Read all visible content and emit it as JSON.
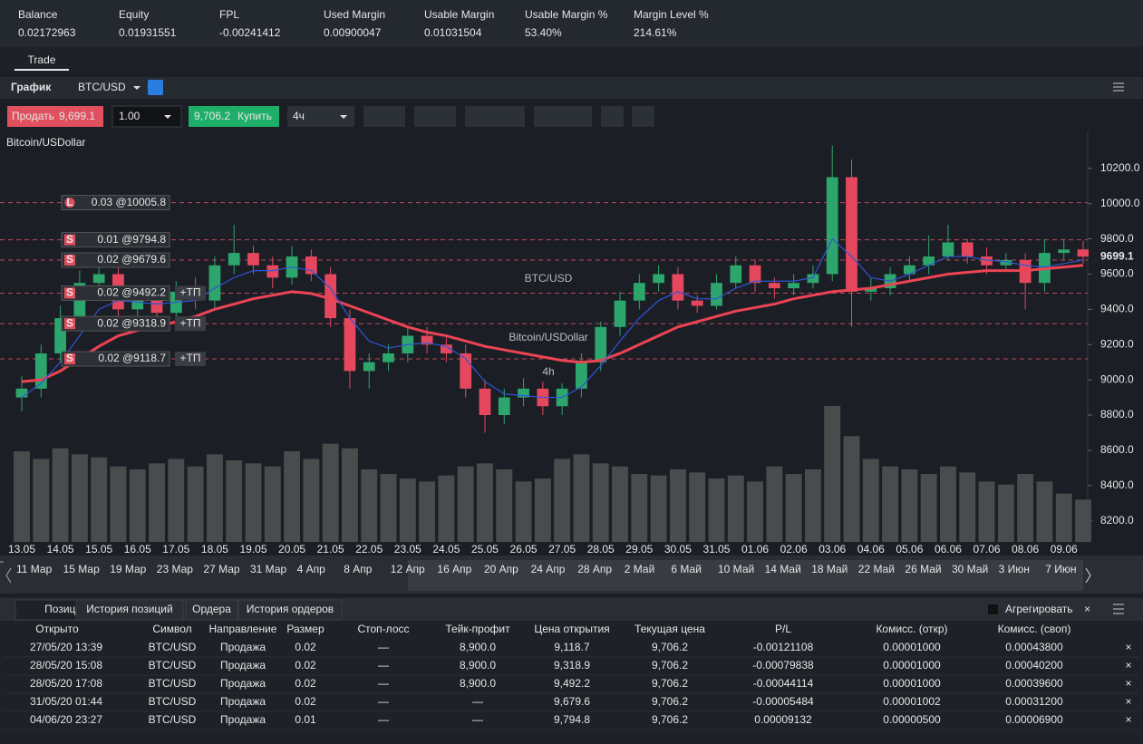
{
  "account": [
    {
      "label": "Balance",
      "value": "0.02172963"
    },
    {
      "label": "Equity",
      "value": "0.01931551"
    },
    {
      "label": "FPL",
      "value": "-0.00241412",
      "color": "#e0505f"
    },
    {
      "label": "Used Margin",
      "value": "0.00900047"
    },
    {
      "label": "Usable Margin",
      "value": "0.01031504"
    },
    {
      "label": "Usable Margin %",
      "value": "53.40%",
      "color": "#2ebd6b"
    },
    {
      "label": "Margin Level %",
      "value": "214.61%",
      "color": "#2ebd6b"
    }
  ],
  "nav_tabs": [
    "Trade"
  ],
  "chart_header": {
    "title": "График",
    "symbol": "BTC/USD"
  },
  "toolbar": {
    "sell_label": "Продать",
    "sell_price": "9,699.1",
    "amount": "1.00",
    "buy_price": "9,706.2",
    "buy_label": "Купить",
    "interval": "4ч"
  },
  "chart_data": {
    "type": "candlestick",
    "caption": "Bitcoin/USDollar",
    "watermark": {
      "symbol": "BTC/USD",
      "name": "Bitcoin/USDollar",
      "interval": "4h"
    },
    "categories": [
      "13.05",
      null,
      "14.05",
      null,
      "15.05",
      null,
      "16.05",
      null,
      "17.05",
      null,
      "18.05",
      null,
      "19.05",
      null,
      "20.05",
      null,
      "21.05",
      null,
      "22.05",
      null,
      "23.05",
      null,
      "24.05",
      null,
      "25.05",
      null,
      "26.05",
      null,
      "27.05",
      null,
      "28.05",
      null,
      "29.05",
      null,
      "30.05",
      null,
      "31.05",
      null,
      "01.06",
      null,
      "02.06",
      null,
      "03.06",
      null,
      "04.06",
      null,
      "05.06",
      null,
      "06.06",
      null,
      "07.06",
      null,
      "08.06",
      null,
      "09.06",
      null
    ],
    "open": [
      8900,
      8950,
      9150,
      9350,
      9550,
      9600,
      9400,
      9450,
      9380,
      9500,
      9450,
      9650,
      9720,
      9650,
      9580,
      9700,
      9600,
      9350,
      9050,
      9100,
      9150,
      9250,
      9200,
      9150,
      8950,
      8800,
      8900,
      8950,
      8850,
      8950,
      9100,
      9300,
      9450,
      9550,
      9600,
      9450,
      9420,
      9550,
      9650,
      9550,
      9520,
      9550,
      9600,
      10150,
      9500,
      9520,
      9600,
      9650,
      9700,
      9780,
      9700,
      9650,
      9680,
      9550,
      9720,
      9740
    ],
    "high": [
      9020,
      9200,
      9420,
      9620,
      9720,
      9660,
      9480,
      9520,
      9560,
      9580,
      9700,
      9880,
      9760,
      9700,
      9760,
      9740,
      9640,
      9400,
      9150,
      9200,
      9300,
      9300,
      9240,
      9200,
      9000,
      8950,
      9010,
      8990,
      8980,
      9150,
      9330,
      9500,
      9600,
      9650,
      9640,
      9480,
      9600,
      9700,
      9680,
      9580,
      9600,
      9650,
      10330,
      10250,
      9580,
      9640,
      9700,
      9820,
      9880,
      9800,
      9750,
      9720,
      9720,
      9800,
      9800,
      9790
    ],
    "low": [
      8820,
      8900,
      9100,
      9300,
      9500,
      9350,
      9350,
      9330,
      9340,
      9400,
      9400,
      9600,
      9600,
      9520,
      9540,
      9560,
      9300,
      8950,
      8950,
      9050,
      9100,
      9150,
      9100,
      8900,
      8700,
      8750,
      8850,
      8800,
      8800,
      8900,
      9050,
      9250,
      9400,
      9500,
      9400,
      9380,
      9400,
      9520,
      9500,
      9460,
      9480,
      9520,
      9560,
      9300,
      9450,
      9480,
      9560,
      9600,
      9680,
      9660,
      9600,
      9620,
      9400,
      9500,
      9680,
      9660
    ],
    "close": [
      8950,
      9150,
      9350,
      9550,
      9600,
      9400,
      9450,
      9380,
      9500,
      9450,
      9650,
      9720,
      9650,
      9580,
      9700,
      9600,
      9350,
      9050,
      9100,
      9150,
      9250,
      9200,
      9150,
      8950,
      8800,
      8900,
      8950,
      8850,
      8950,
      9100,
      9300,
      9450,
      9550,
      9600,
      9450,
      9420,
      9550,
      9650,
      9550,
      9520,
      9550,
      9600,
      10150,
      9500,
      9520,
      9600,
      9650,
      9700,
      9780,
      9700,
      9650,
      9680,
      9550,
      9720,
      9740,
      9699.1
    ],
    "volume": [
      60,
      55,
      62,
      58,
      56,
      50,
      48,
      52,
      55,
      50,
      58,
      54,
      52,
      50,
      60,
      55,
      65,
      62,
      48,
      45,
      42,
      40,
      44,
      50,
      52,
      48,
      40,
      42,
      55,
      58,
      52,
      50,
      45,
      44,
      48,
      46,
      42,
      44,
      40,
      50,
      45,
      48,
      90,
      70,
      55,
      50,
      48,
      45,
      50,
      46,
      40,
      38,
      45,
      40,
      32,
      28
    ],
    "up_color": "#2ca66c",
    "down_color": "#e5485e",
    "volume_color": "#4a4b4d",
    "ma": [
      {
        "color": "#ec4454",
        "values": [
          8990,
          9000,
          9050,
          9120,
          9190,
          9250,
          9280,
          9300,
          9330,
          9360,
          9400,
          9430,
          9460,
          9480,
          9500,
          9490,
          9460,
          9420,
          9380,
          9340,
          9300,
          9270,
          9250,
          9220,
          9190,
          9170,
          9150,
          9130,
          9110,
          9100,
          9110,
          9150,
          9200,
          9250,
          9300,
          9330,
          9360,
          9390,
          9410,
          9430,
          9460,
          9480,
          9500,
          9510,
          9520,
          9540,
          9560,
          9580,
          9600,
          9610,
          9620,
          9620,
          9620,
          9630,
          9640,
          9650
        ]
      },
      {
        "color": "#2f55d8",
        "values": [
          8900,
          8980,
          9100,
          9250,
          9400,
          9450,
          9440,
          9430,
          9440,
          9450,
          9520,
          9580,
          9620,
          9620,
          9640,
          9620,
          9520,
          9350,
          9220,
          9180,
          9200,
          9210,
          9190,
          9120,
          8990,
          8920,
          8910,
          8900,
          8900,
          8960,
          9080,
          9220,
          9350,
          9450,
          9500,
          9460,
          9460,
          9520,
          9560,
          9560,
          9560,
          9580,
          9800,
          9700,
          9580,
          9560,
          9600,
          9650,
          9700,
          9700,
          9680,
          9670,
          9650,
          9640,
          9660,
          9680
        ]
      }
    ],
    "ylim": [
      8080,
      10410
    ],
    "yticks": [
      {
        "value": 8200,
        "label": "8200.0"
      },
      {
        "value": 8400,
        "label": "8400.0"
      },
      {
        "value": 8600,
        "label": "8600.0"
      },
      {
        "value": 8800,
        "label": "8800.0"
      },
      {
        "value": 9000,
        "label": "9000.0"
      },
      {
        "value": 9200,
        "label": "9200.0"
      },
      {
        "value": 9400,
        "label": "9400.0"
      },
      {
        "value": 9600,
        "label": "9600.0"
      },
      {
        "value": 9800,
        "label": "9800.0"
      },
      {
        "value": 10000,
        "label": "10000.0"
      },
      {
        "value": 10200,
        "label": "10200.0"
      }
    ],
    "last_price": 9699.1,
    "orders": [
      {
        "side": "L",
        "label": "0.03 @10005.8",
        "price": 10005.8
      },
      {
        "side": "S",
        "label": "0.01 @9794.8",
        "price": 9794.8
      },
      {
        "side": "S",
        "label": "0.02 @9679.6",
        "price": 9679.6
      },
      {
        "side": "S",
        "label": "0.02 @9492.2",
        "price": 9492.2,
        "tp": "+ТП"
      },
      {
        "side": "S",
        "label": "0.02 @9318.9",
        "price": 9318.9,
        "tp": "+ТП"
      },
      {
        "side": "S",
        "label": "0.02 @9118.7",
        "price": 9118.7,
        "tp": "+ТП"
      }
    ]
  },
  "navigator": [
    "11 Мар",
    "15 Мар",
    "19 Мар",
    "23 Мар",
    "27 Мар",
    "31 Мар",
    "4 Апр",
    "8 Апр",
    "12 Апр",
    "16 Апр",
    "20 Апр",
    "24 Апр",
    "28 Апр",
    "2 Май",
    "6 Май",
    "10 Май",
    "14 Май",
    "18 Май",
    "22 Май",
    "26 Май",
    "30 Май",
    "3 Июн",
    "7 Июн"
  ],
  "positions": {
    "tabs": [
      "Позиции",
      "История позиций",
      "Ордера",
      "История ордеров"
    ],
    "aggregate": "Агрегировать",
    "columns": [
      "Открыто",
      "Символ",
      "Направление",
      "Размер",
      "Стоп-лосс",
      "Тейк-профит",
      "Цена открытия",
      "Текущая цена",
      "P/L",
      "Комисс. (откр)",
      "Комисс. (своп)"
    ],
    "rows": [
      [
        "27/05/20 13:39",
        "BTC/USD",
        "Продажа",
        "0.02",
        "—",
        "8,900.0",
        "9,118.7",
        "9,706.2",
        "-0.00121108",
        "0.00001000",
        "0.00043800"
      ],
      [
        "28/05/20 15:08",
        "BTC/USD",
        "Продажа",
        "0.02",
        "—",
        "8,900.0",
        "9,318.9",
        "9,706.2",
        "-0.00079838",
        "0.00001000",
        "0.00040200"
      ],
      [
        "28/05/20 17:08",
        "BTC/USD",
        "Продажа",
        "0.02",
        "—",
        "8,900.0",
        "9,492.2",
        "9,706.2",
        "-0.00044114",
        "0.00001000",
        "0.00039600"
      ],
      [
        "31/05/20 01:44",
        "BTC/USD",
        "Продажа",
        "0.02",
        "—",
        "—",
        "9,679.6",
        "9,706.2",
        "-0.00005484",
        "0.00001002",
        "0.00031200"
      ],
      [
        "04/06/20 23:27",
        "BTC/USD",
        "Продажа",
        "0.01",
        "—",
        "—",
        "9,794.8",
        "9,706.2",
        "0.00009132",
        "0.00000500",
        "0.00006900"
      ]
    ]
  }
}
